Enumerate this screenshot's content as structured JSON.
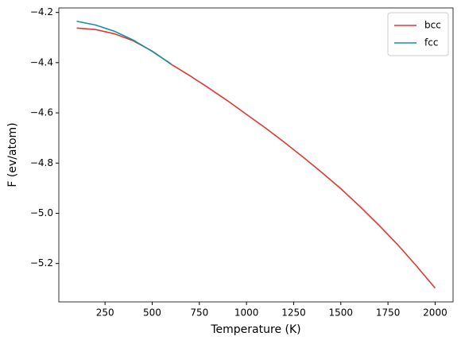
{
  "chart_data": {
    "type": "line",
    "x_label": "Temperature (K)",
    "y_label": "F (ev/atom)",
    "xlim": [
      5,
      2095
    ],
    "ylim": [
      -5.353,
      -4.182
    ],
    "xticks": [
      250,
      500,
      750,
      1000,
      1250,
      1500,
      1750,
      2000
    ],
    "yticks": [
      {
        "value": -5.2,
        "label": "−5.2"
      },
      {
        "value": -5.0,
        "label": "−5.0"
      },
      {
        "value": -4.8,
        "label": "−4.8"
      },
      {
        "value": -4.6,
        "label": "−4.6"
      },
      {
        "value": -4.4,
        "label": "−4.4"
      },
      {
        "value": -4.2,
        "label": "−4.2"
      }
    ],
    "legend": "upper right",
    "series": [
      {
        "name": "bcc",
        "color": "#d93a32",
        "x": [
          100,
          200,
          300,
          400,
          500,
          600,
          700,
          800,
          900,
          1000,
          1100,
          1200,
          1300,
          1400,
          1500,
          1600,
          1700,
          1800,
          1900,
          2000
        ],
        "values": [
          -4.262,
          -4.268,
          -4.285,
          -4.313,
          -4.354,
          -4.406,
          -4.452,
          -4.501,
          -4.552,
          -4.606,
          -4.66,
          -4.717,
          -4.776,
          -4.838,
          -4.902,
          -4.972,
          -5.046,
          -5.124,
          -5.209,
          -5.298
        ]
      },
      {
        "name": "fcc",
        "color": "#1a8fa0",
        "x": [
          100,
          200,
          300,
          400,
          500,
          600
        ],
        "values": [
          -4.235,
          -4.25,
          -4.275,
          -4.31,
          -4.355,
          -4.405
        ]
      }
    ]
  }
}
